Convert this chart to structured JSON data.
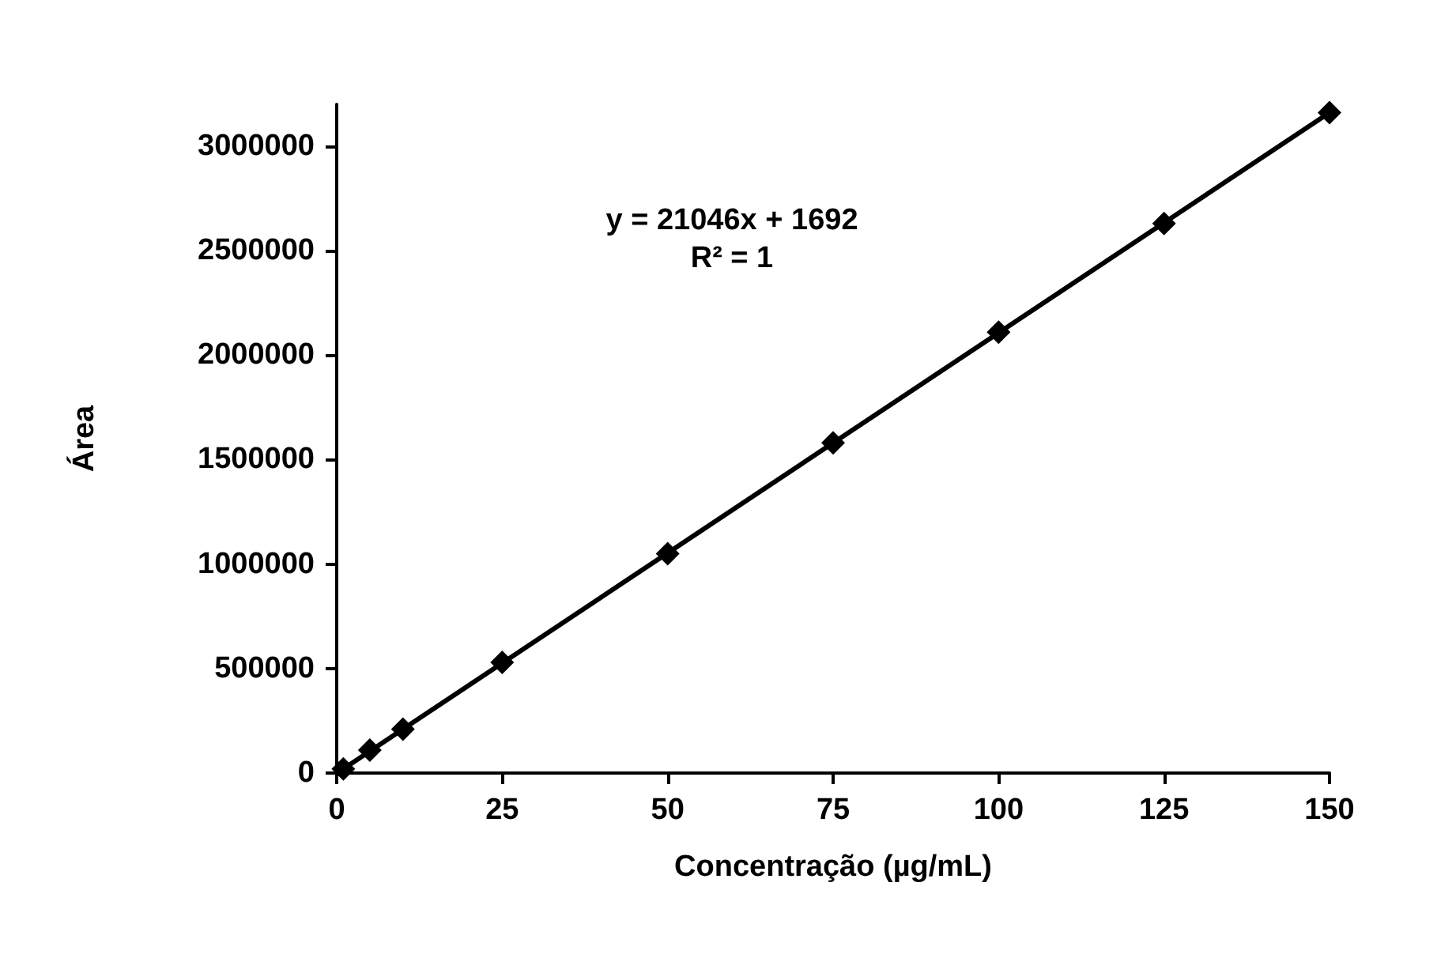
{
  "chart_data": {
    "type": "scatter",
    "xlabel": "Concentração (µg/mL)",
    "ylabel": "Área",
    "annotations": [
      "y = 21046x + 1692",
      "R² = 1"
    ],
    "x": [
      1,
      5,
      10,
      25,
      50,
      75,
      100,
      125,
      150
    ],
    "series": [
      {
        "color": "#000000",
        "marker": "diamond",
        "values": [
          20000,
          110000,
          210000,
          530000,
          1050000,
          1580000,
          2110000,
          2630000,
          3160000
        ]
      },
      {
        "type": "line",
        "color": "#000000",
        "marker": "none",
        "line_style": "solid",
        "x": [
          1,
          150
        ],
        "values": [
          20000,
          3160000
        ]
      }
    ],
    "xlim": [
      0,
      150
    ],
    "xticks": [
      0,
      25,
      50,
      75,
      100,
      125,
      150
    ],
    "ylim": [
      0,
      3200000
    ],
    "yticks": [
      0,
      500000,
      1000000,
      1500000,
      2000000,
      2500000,
      3000000
    ],
    "grid": false
  }
}
